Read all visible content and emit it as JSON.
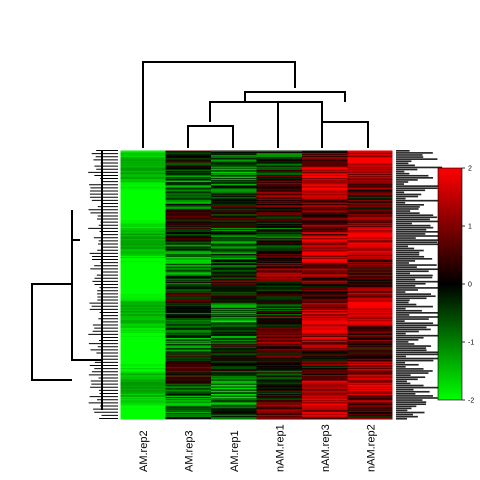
{
  "chart_data": {
    "type": "heatmap",
    "title": "",
    "xlabel": "",
    "ylabel": "",
    "columns": [
      "AM.rep2",
      "AM.rep3",
      "AM.rep1",
      "nAM.rep1",
      "nAM.rep3",
      "nAM.rep2"
    ],
    "row_count": 260,
    "row_labels_legible": false,
    "color_scale": {
      "min": -2,
      "max": 2,
      "ticks": [
        -2,
        -1,
        0,
        1,
        2
      ],
      "low_color": "#00ff00",
      "mid_color": "#000000",
      "high_color": "#ff0000"
    },
    "column_dendrogram": "((AM.rep2, ((AM.rep3, AM.rep1), (nAM.rep1, (nAM.rep3, nAM.rep2)))))",
    "column_mean_z": [
      -1.9,
      -0.4,
      -0.5,
      0.2,
      1.1,
      1.0
    ],
    "row_dendrogram": "shown on left; leaves unlabeled/illegible",
    "colors": {
      "separator": "#ffffff",
      "dendrogram": "#000000",
      "background": "#ffffff"
    }
  }
}
